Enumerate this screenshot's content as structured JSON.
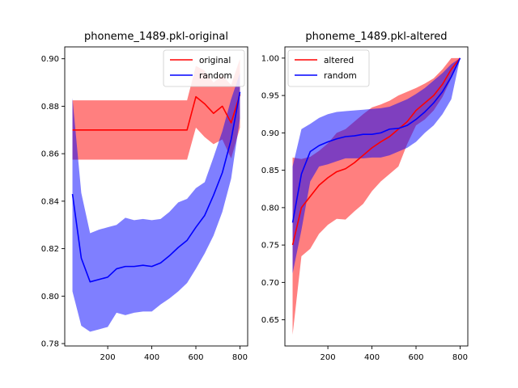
{
  "chart_data": [
    {
      "type": "line",
      "title": "phoneme_1489.pkl-original",
      "xlabel": "",
      "ylabel": "",
      "xlim": [
        5,
        835
      ],
      "ylim": [
        0.779,
        0.905
      ],
      "xticks": [
        200,
        400,
        600,
        800
      ],
      "yticks": [
        0.78,
        0.8,
        0.82,
        0.84,
        0.86,
        0.88,
        0.9
      ],
      "ytick_labels": [
        "0.78",
        "0.80",
        "0.82",
        "0.84",
        "0.86",
        "0.88",
        "0.90"
      ],
      "grid": false,
      "legend_position": "top-right",
      "series": [
        {
          "name": "original",
          "color": "#ff0000",
          "band_color": "#ff0000",
          "x": [
            40,
            80,
            120,
            160,
            200,
            240,
            280,
            320,
            360,
            400,
            440,
            480,
            520,
            560,
            600,
            640,
            680,
            720,
            760,
            800
          ],
          "mean": [
            0.87,
            0.87,
            0.87,
            0.87,
            0.87,
            0.87,
            0.87,
            0.87,
            0.87,
            0.87,
            0.87,
            0.87,
            0.87,
            0.87,
            0.884,
            0.881,
            0.877,
            0.88,
            0.873,
            0.885
          ],
          "upper": [
            0.8825,
            0.8825,
            0.8825,
            0.8825,
            0.8825,
            0.8825,
            0.8825,
            0.8825,
            0.8825,
            0.8825,
            0.8825,
            0.8825,
            0.8825,
            0.8825,
            0.897,
            0.895,
            0.89,
            0.893,
            0.889,
            0.9
          ],
          "lower": [
            0.8575,
            0.8575,
            0.8575,
            0.8575,
            0.8575,
            0.8575,
            0.8575,
            0.8575,
            0.8575,
            0.8575,
            0.8575,
            0.8575,
            0.8575,
            0.8575,
            0.871,
            0.867,
            0.864,
            0.866,
            0.858,
            0.871
          ]
        },
        {
          "name": "random",
          "color": "#0000ff",
          "band_color": "#0000ff",
          "x": [
            40,
            80,
            120,
            160,
            200,
            240,
            280,
            320,
            360,
            400,
            440,
            480,
            520,
            560,
            600,
            640,
            680,
            720,
            760,
            800
          ],
          "mean": [
            0.843,
            0.816,
            0.806,
            0.807,
            0.808,
            0.8115,
            0.8125,
            0.8125,
            0.813,
            0.8125,
            0.814,
            0.817,
            0.8205,
            0.8235,
            0.829,
            0.834,
            0.8425,
            0.852,
            0.866,
            0.886
          ],
          "upper": [
            0.8835,
            0.8435,
            0.8265,
            0.828,
            0.829,
            0.83,
            0.833,
            0.832,
            0.8325,
            0.832,
            0.8325,
            0.8355,
            0.8395,
            0.841,
            0.8455,
            0.848,
            0.8585,
            0.8695,
            0.883,
            0.894
          ],
          "lower": [
            0.802,
            0.7875,
            0.785,
            0.786,
            0.787,
            0.793,
            0.792,
            0.793,
            0.7935,
            0.7935,
            0.7965,
            0.799,
            0.802,
            0.8055,
            0.8115,
            0.818,
            0.8255,
            0.8355,
            0.8495,
            0.875
          ]
        }
      ]
    },
    {
      "type": "line",
      "title": "phoneme_1489.pkl-altered",
      "xlabel": "",
      "ylabel": "",
      "xlim": [
        5,
        835
      ],
      "ylim": [
        0.615,
        1.015
      ],
      "xticks": [
        200,
        400,
        600,
        800
      ],
      "yticks": [
        0.65,
        0.7,
        0.75,
        0.8,
        0.85,
        0.9,
        0.95,
        1.0
      ],
      "ytick_labels": [
        "0.65",
        "0.70",
        "0.75",
        "0.80",
        "0.85",
        "0.90",
        "0.95",
        "1.00"
      ],
      "grid": false,
      "legend_position": "top-left",
      "series": [
        {
          "name": "altered",
          "color": "#ff0000",
          "band_color": "#ff0000",
          "x": [
            40,
            80,
            120,
            160,
            200,
            240,
            280,
            320,
            360,
            400,
            440,
            480,
            520,
            560,
            600,
            640,
            680,
            720,
            760,
            800
          ],
          "mean": [
            0.75,
            0.8,
            0.815,
            0.83,
            0.84,
            0.848,
            0.852,
            0.86,
            0.87,
            0.88,
            0.888,
            0.895,
            0.905,
            0.915,
            0.93,
            0.94,
            0.95,
            0.965,
            0.985,
            1.0
          ],
          "upper": [
            0.867,
            0.865,
            0.868,
            0.876,
            0.886,
            0.9,
            0.905,
            0.915,
            0.925,
            0.934,
            0.938,
            0.943,
            0.95,
            0.955,
            0.96,
            0.966,
            0.973,
            0.985,
            1.0,
            1.0
          ],
          "lower": [
            0.63,
            0.735,
            0.745,
            0.765,
            0.777,
            0.785,
            0.784,
            0.795,
            0.805,
            0.822,
            0.835,
            0.845,
            0.855,
            0.885,
            0.91,
            0.918,
            0.93,
            0.948,
            0.973,
            1.0
          ]
        },
        {
          "name": "random",
          "color": "#0000ff",
          "band_color": "#0000ff",
          "x": [
            40,
            80,
            120,
            160,
            200,
            240,
            280,
            320,
            360,
            400,
            440,
            480,
            520,
            560,
            600,
            640,
            680,
            720,
            760,
            800
          ],
          "mean": [
            0.78,
            0.845,
            0.875,
            0.883,
            0.888,
            0.892,
            0.895,
            0.896,
            0.898,
            0.898,
            0.9,
            0.905,
            0.906,
            0.91,
            0.918,
            0.928,
            0.94,
            0.955,
            0.975,
            1.0
          ],
          "upper": [
            0.855,
            0.905,
            0.912,
            0.92,
            0.925,
            0.928,
            0.929,
            0.93,
            0.931,
            0.932,
            0.933,
            0.935,
            0.94,
            0.945,
            0.952,
            0.96,
            0.97,
            0.98,
            0.992,
            1.0
          ],
          "lower": [
            0.712,
            0.77,
            0.835,
            0.855,
            0.858,
            0.862,
            0.866,
            0.866,
            0.866,
            0.867,
            0.867,
            0.87,
            0.875,
            0.88,
            0.888,
            0.9,
            0.91,
            0.925,
            0.945,
            1.0
          ]
        }
      ]
    }
  ]
}
